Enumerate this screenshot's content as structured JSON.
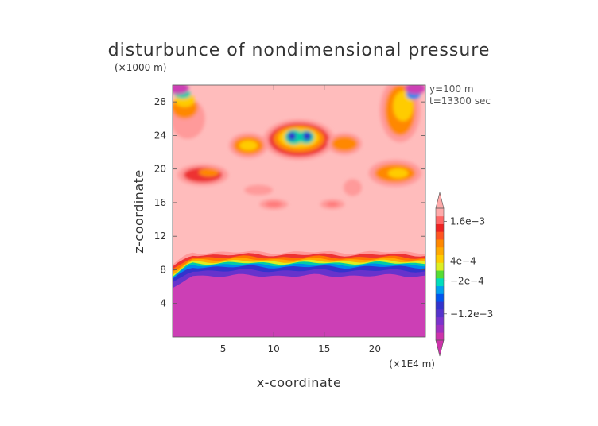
{
  "chart_data": {
    "type": "heatmap",
    "title": "disturbunce of nondimensional pressure",
    "xlabel": "x-coordinate",
    "ylabel": "z-coordinate",
    "x_unit": "(×1E4 m)",
    "y_unit": "(×1000 m)",
    "annotations": [
      "y=100 m",
      "t=13300 sec"
    ],
    "xlim": [
      0,
      25
    ],
    "ylim": [
      0,
      30
    ],
    "x_ticks": [
      5,
      10,
      15,
      20
    ],
    "y_ticks": [
      4,
      8,
      12,
      16,
      20,
      24,
      28
    ],
    "colorbar": {
      "labels": [
        {
          "value": 0.0016,
          "text": "1.6e−3"
        },
        {
          "value": 0.0004,
          "text": "4e−4"
        },
        {
          "value": -0.0002,
          "text": "−2e−4"
        },
        {
          "value": -0.0012,
          "text": "−1.2e−3"
        }
      ],
      "colors": [
        "#cc33aa",
        "#a030c0",
        "#7a33cc",
        "#5533cc",
        "#3333cc",
        "#0055ee",
        "#00a0ee",
        "#00ddbb",
        "#55dd33",
        "#ddee22",
        "#ffcc00",
        "#ffaa00",
        "#ff8800",
        "#ff5522",
        "#ee2222",
        "#ff6666",
        "#ffaaaa"
      ],
      "extend": "both"
    },
    "colors": {
      "background_level": "#ffbcbc",
      "surface_layer": "#cc3fb5",
      "ridge": "#ff7a7a"
    }
  }
}
